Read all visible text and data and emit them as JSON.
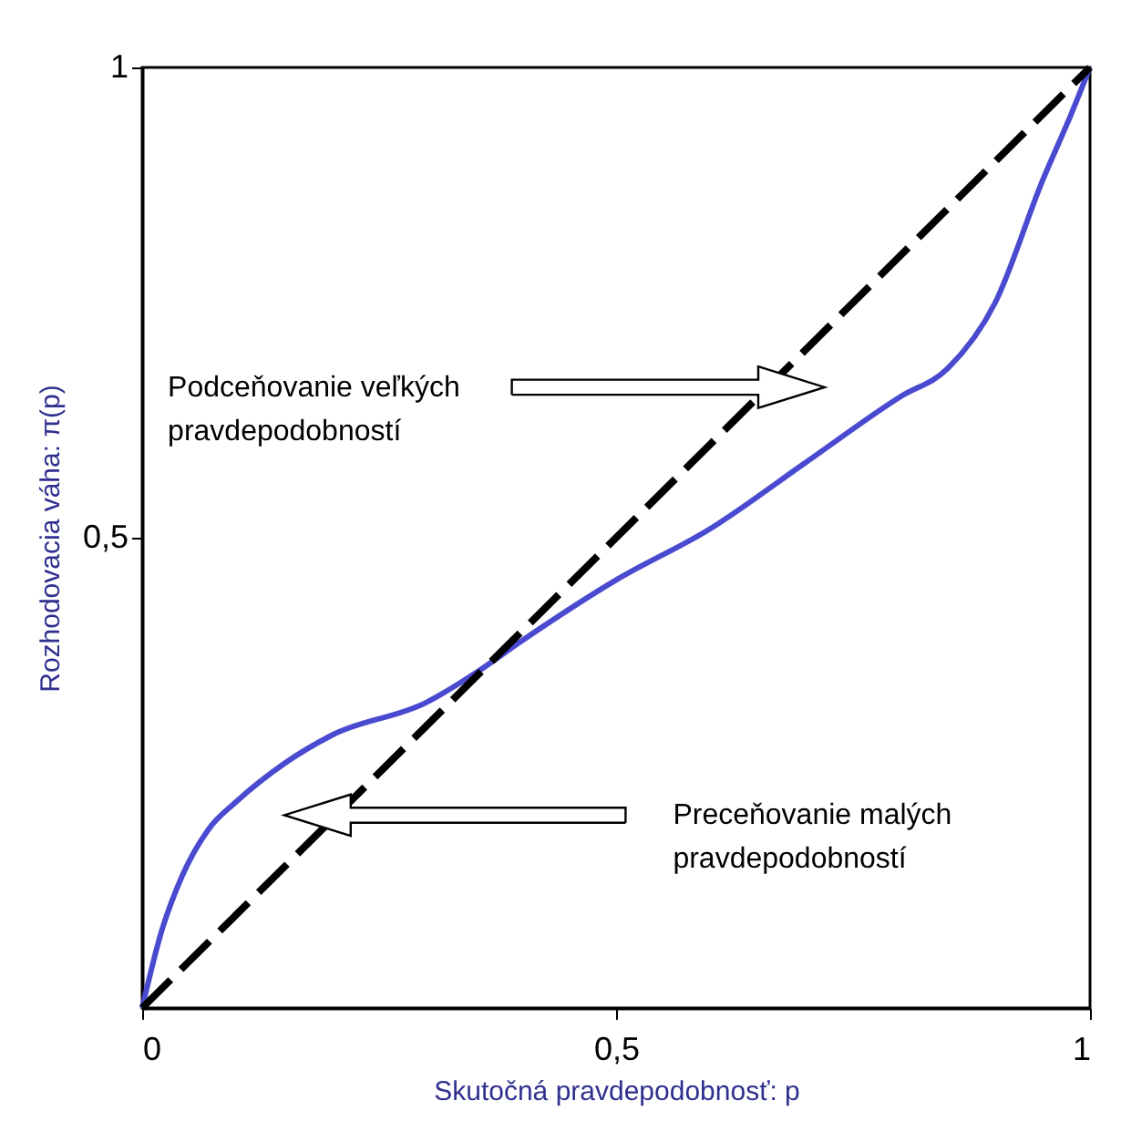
{
  "chart_data": {
    "type": "line",
    "xlabel": "Skutočná pravdepodobnosť: p",
    "ylabel": "Rozhodovacia váha: π(p)",
    "xlim": [
      0,
      1
    ],
    "ylim": [
      0,
      1
    ],
    "xticks": [
      0,
      {
        "value": 0.5,
        "label": "0,5"
      },
      1
    ],
    "yticks": [
      {
        "value": 0.5,
        "label": "0,5"
      },
      {
        "value": 1,
        "label": "1"
      }
    ],
    "grid": false,
    "marker": "none",
    "series": [
      {
        "color": "#4a4ad0",
        "line_style": "solid",
        "x": [
          0,
          0.02,
          0.042,
          0.07,
          0.1,
          0.15,
          0.2,
          0.3,
          0.35,
          0.4,
          0.5,
          0.6,
          0.7,
          0.8,
          0.85,
          0.9,
          0.95,
          0.98,
          1
        ],
        "values": [
          0,
          0.08,
          0.14,
          0.19,
          0.22,
          0.26,
          0.29,
          0.325,
          0.355,
          0.39,
          0.455,
          0.51,
          0.58,
          0.65,
          0.68,
          0.75,
          0.88,
          0.95,
          1
        ]
      },
      {
        "color": "#000000",
        "line_style": "dashed",
        "x": [
          0,
          1
        ],
        "values": [
          0,
          1
        ]
      }
    ],
    "annotations": [
      "Podceňovanie veľkých\npravdepodobností",
      "Preceňovanie malých\npravdepodobností"
    ]
  }
}
